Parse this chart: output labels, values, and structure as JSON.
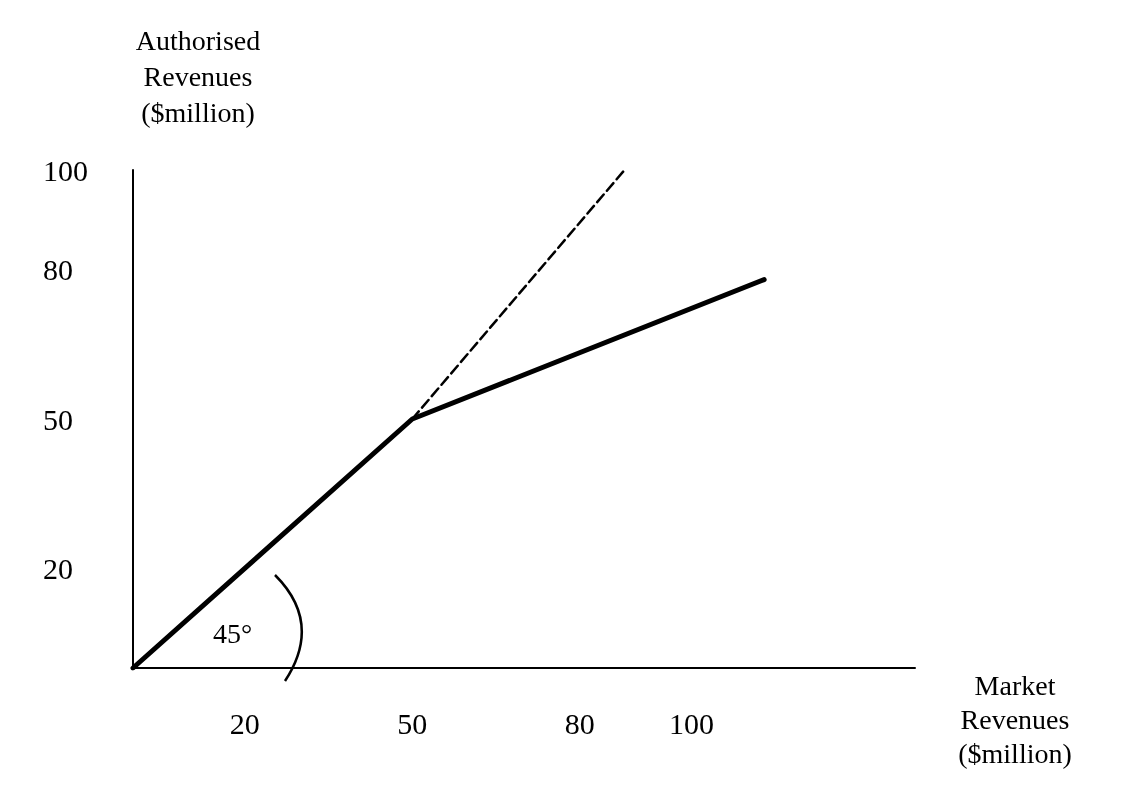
{
  "chart_data": {
    "type": "line",
    "xlabel": "Market\nRevenues\n($million)",
    "ylabel": "Authorised\nRevenues\n($million)",
    "series": [
      {
        "color": "#000000",
        "x": [
          0,
          50,
          113
        ],
        "values": [
          0,
          50,
          78
        ],
        "line_style": "solid"
      },
      {
        "color": "#000000",
        "x": [
          50,
          88
        ],
        "values": [
          50,
          100
        ],
        "line_style": "dashed"
      }
    ],
    "xlim": [
      0,
      140
    ],
    "xticks": [
      20,
      50,
      80,
      100
    ],
    "ylim": [
      0,
      100
    ],
    "yticks": [
      20,
      50,
      80,
      100
    ],
    "annotations": [
      "45°"
    ],
    "grid": false,
    "marker": "none"
  }
}
